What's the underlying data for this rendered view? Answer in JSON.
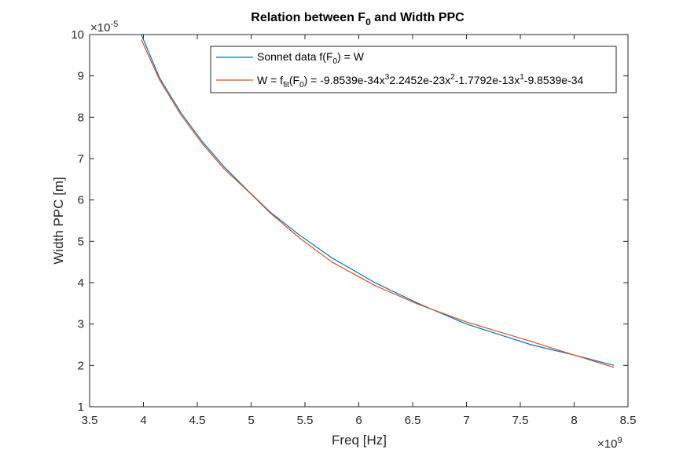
{
  "chart_data": {
    "type": "line",
    "title": {
      "prefix": "Relation between F",
      "sub": "0",
      "suffix": " and Width PPC"
    },
    "xlabel": "Freq [Hz]",
    "ylabel": "Width PPC [m]",
    "x_exponent_label": {
      "prefix": "×10",
      "exp": "9"
    },
    "y_exponent_label": {
      "prefix": "×10",
      "exp": "-5"
    },
    "xlim": [
      3500000000.0,
      8500000000.0
    ],
    "ylim": [
      1e-05,
      0.0001
    ],
    "xticks": [
      3.5,
      4,
      4.5,
      5,
      5.5,
      6,
      6.5,
      7,
      7.5,
      8,
      8.5
    ],
    "xtick_labels": [
      "3.5",
      "4",
      "4.5",
      "5",
      "5.5",
      "6",
      "6.5",
      "7",
      "7.5",
      "8",
      "8.5"
    ],
    "yticks": [
      1,
      2,
      3,
      4,
      5,
      6,
      7,
      8,
      9,
      10
    ],
    "ytick_labels": [
      "1",
      "2",
      "3",
      "4",
      "5",
      "6",
      "7",
      "8",
      "9",
      "10"
    ],
    "grid": false,
    "legend_position": "top-right",
    "series": [
      {
        "color": "#0072BD",
        "legend": {
          "prefix": "Sonnet data f(F",
          "sub": "0",
          "suffix": ") = W"
        },
        "x": [
          3980000000.0,
          4150000000.0,
          4350000000.0,
          4550000000.0,
          4750000000.0,
          4980000000.0,
          5180000000.0,
          5450000000.0,
          5750000000.0,
          6150000000.0,
          6550000000.0,
          7000000000.0,
          7600000000.0,
          8000000000.0,
          8370000000.0
        ],
        "y": [
          0.0001,
          8.95e-05,
          8.1e-05,
          7.4e-05,
          6.8e-05,
          6.2e-05,
          5.7e-05,
          5.15e-05,
          4.6e-05,
          4e-05,
          3.5e-05,
          3e-05,
          2.5e-05,
          2.25e-05,
          2e-05
        ]
      },
      {
        "color": "#D95319",
        "legend": {
          "p1": "W = f",
          "s1": "fit",
          "p2": "(F",
          "s2": "0",
          "p3": ") = -9.8539e-34x",
          "e1": "3",
          "p4": "2.2452e-23x",
          "e2": "2",
          "p5": "-1.7792e-13x",
          "e3": "1",
          "p6": "-9.8539e-34"
        },
        "x": [
          3980000000.0,
          4150000000.0,
          4350000000.0,
          4550000000.0,
          4750000000.0,
          4980000000.0,
          5180000000.0,
          5450000000.0,
          5750000000.0,
          6150000000.0,
          6550000000.0,
          7000000000.0,
          7600000000.0,
          8000000000.0,
          8370000000.0
        ],
        "y": [
          9.88e-05,
          8.9e-05,
          8.05e-05,
          7.35e-05,
          6.75e-05,
          6.19e-05,
          5.68e-05,
          5.08e-05,
          4.5e-05,
          3.93e-05,
          3.48e-05,
          3.05e-05,
          2.58e-05,
          2.25e-05,
          1.95e-05
        ]
      }
    ]
  }
}
